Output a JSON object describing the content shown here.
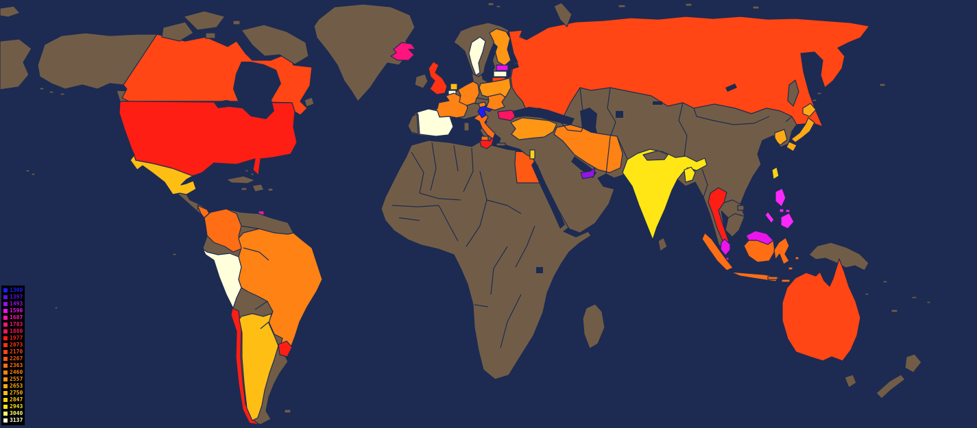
{
  "map": {
    "ocean_color": "#1D2B52",
    "no_data_color": "#715D47",
    "border_color": "#1D2B52",
    "countries": {
      "canada": {
        "name": "Canada",
        "color": "#FF4614"
      },
      "united_states": {
        "name": "United States",
        "color": "#FF1E14"
      },
      "mexico": {
        "name": "Mexico",
        "color": "#FFBE14"
      },
      "costa_rica_panama": {
        "name": "Costa Rica / Panama",
        "color": "#FF6E14"
      },
      "trinidad_tobago": {
        "name": "Trinidad and Tobago",
        "color": "#FF14AF"
      },
      "colombia": {
        "name": "Colombia",
        "color": "#FF6E14"
      },
      "peru": {
        "name": "Peru",
        "color": "#FFFFDC"
      },
      "brazil": {
        "name": "Brazil",
        "color": "#FF8214"
      },
      "chile": {
        "name": "Chile",
        "color": "#FF1E14"
      },
      "argentina": {
        "name": "Argentina",
        "color": "#FFBE14"
      },
      "uruguay": {
        "name": "Uruguay",
        "color": "#FF1E14"
      },
      "iceland": {
        "name": "Iceland",
        "color": "#FF147D"
      },
      "united_kingdom": {
        "name": "United Kingdom",
        "color": "#FF3214"
      },
      "spain": {
        "name": "Spain",
        "color": "#FFFFDC"
      },
      "france": {
        "name": "France",
        "color": "#FF8214"
      },
      "netherlands": {
        "name": "Netherlands",
        "color": "#FFBE14"
      },
      "belgium": {
        "name": "Belgium",
        "color": "#FFFFDC"
      },
      "germany": {
        "name": "Germany",
        "color": "#FF8214"
      },
      "poland": {
        "name": "Poland",
        "color": "#FF9614"
      },
      "sweden": {
        "name": "Sweden",
        "color": "#FFFFDC"
      },
      "finland": {
        "name": "Finland",
        "color": "#FF9614"
      },
      "estonia": {
        "name": "Estonia",
        "color": "#EB14EB"
      },
      "latvia": {
        "name": "Latvia",
        "color": "#FFFFDC"
      },
      "lithuania": {
        "name": "Lithuania",
        "color": "#FF4614"
      },
      "italy": {
        "name": "Italy",
        "color": "#FF6E14"
      },
      "slovenia": {
        "name": "Slovenia",
        "color": "#FF8214"
      },
      "slovakia_hungary": {
        "name": "Slovakia / Hungary",
        "color": "#FF8214"
      },
      "croatia": {
        "name": "Croatia",
        "color": "#1E1EFA"
      },
      "bulgaria": {
        "name": "Bulgaria",
        "color": "#FF1460"
      },
      "russia": {
        "name": "Russia",
        "color": "#FF4614"
      },
      "turkey": {
        "name": "Turkey",
        "color": "#FF9614"
      },
      "tunisia": {
        "name": "Tunisia",
        "color": "#FF1E14"
      },
      "egypt": {
        "name": "Egypt",
        "color": "#FF5A14"
      },
      "israel": {
        "name": "Israel",
        "color": "#FFD214"
      },
      "united_arab_emirates": {
        "name": "United Arab Emirates",
        "color": "#9614E6"
      },
      "iran": {
        "name": "Iran",
        "color": "#FF8214"
      },
      "india": {
        "name": "India",
        "color": "#FFE614"
      },
      "bangladesh": {
        "name": "Bangladesh",
        "color": "#FFE614"
      },
      "thailand": {
        "name": "Thailand",
        "color": "#FF1E14"
      },
      "malaysia": {
        "name": "Malaysia",
        "color": "#EB14EB"
      },
      "singapore": {
        "name": "Singapore",
        "color": "#EB14EB"
      },
      "indonesia": {
        "name": "Indonesia",
        "color": "#FF6E14"
      },
      "philippines": {
        "name": "Philippines",
        "color": "#FA28FA"
      },
      "taiwan": {
        "name": "Taiwan",
        "color": "#FFD214"
      },
      "japan": {
        "name": "Japan",
        "color": "#FFAA14"
      },
      "south_korea": {
        "name": "South Korea",
        "color": "#FFAA14"
      },
      "australia": {
        "name": "Australia",
        "color": "#FF4614"
      }
    }
  },
  "legend": {
    "background": "#000000",
    "items": [
      {
        "value": "1300",
        "color": "#1E1EFA"
      },
      {
        "value": "1397",
        "color": "#5A14E6"
      },
      {
        "value": "1493",
        "color": "#9614E6"
      },
      {
        "value": "1590",
        "color": "#EB14EB"
      },
      {
        "value": "1687",
        "color": "#FF14AF"
      },
      {
        "value": "1783",
        "color": "#FF147D"
      },
      {
        "value": "1880",
        "color": "#FF1460"
      },
      {
        "value": "1977",
        "color": "#FF1E14"
      },
      {
        "value": "2073",
        "color": "#FF3214"
      },
      {
        "value": "2170",
        "color": "#FF4614"
      },
      {
        "value": "2267",
        "color": "#FF5A14"
      },
      {
        "value": "2363",
        "color": "#FF6E14"
      },
      {
        "value": "2460",
        "color": "#FF8214"
      },
      {
        "value": "2557",
        "color": "#FF9614"
      },
      {
        "value": "2653",
        "color": "#FFAA14"
      },
      {
        "value": "2750",
        "color": "#FFBE14"
      },
      {
        "value": "2847",
        "color": "#FFD214"
      },
      {
        "value": "2943",
        "color": "#FFE614"
      },
      {
        "value": "3040",
        "color": "#FFFA78"
      },
      {
        "value": "3137",
        "color": "#FFFFDC"
      }
    ]
  }
}
